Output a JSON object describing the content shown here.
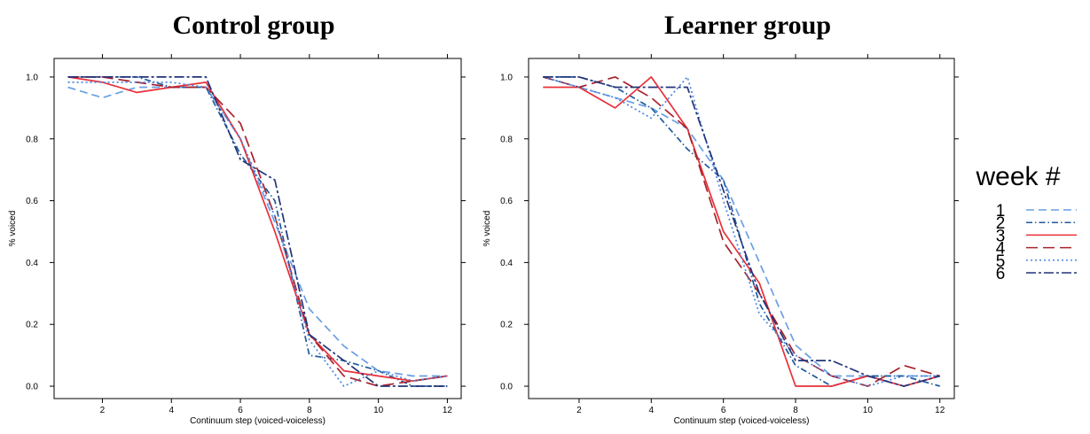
{
  "chart_data": [
    {
      "type": "line",
      "title": "Control group",
      "xlabel": "Continuum step (voiced-voiceless)",
      "ylabel": "% voiced",
      "xlim": [
        0.6,
        12.4
      ],
      "ylim": [
        -0.04,
        1.06
      ],
      "xticks": [
        "2",
        "4",
        "6",
        "8",
        "10",
        "12"
      ],
      "yticks": [
        "0.0",
        "0.2",
        "0.4",
        "0.6",
        "0.8",
        "1.0"
      ],
      "grid": false,
      "x": [
        1,
        2,
        3,
        4,
        5,
        6,
        7,
        8,
        9,
        10,
        11,
        12
      ],
      "series": [
        {
          "name": "1",
          "values": [
            0.967,
            0.933,
            0.967,
            0.967,
            0.967,
            0.8,
            0.53,
            0.25,
            0.13,
            0.05,
            0.033,
            0.033
          ]
        },
        {
          "name": "2",
          "values": [
            1.0,
            1.0,
            1.0,
            0.967,
            0.967,
            0.75,
            0.6,
            0.1,
            0.083,
            0.05,
            0.0,
            0.0
          ]
        },
        {
          "name": "3",
          "values": [
            1.0,
            0.983,
            0.95,
            0.967,
            0.983,
            0.8,
            0.5,
            0.167,
            0.05,
            0.033,
            0.017,
            0.033
          ]
        },
        {
          "name": "4",
          "values": [
            1.0,
            1.0,
            0.983,
            0.967,
            0.967,
            0.85,
            0.55,
            0.167,
            0.033,
            0.0,
            0.017,
            0.033
          ]
        },
        {
          "name": "5",
          "values": [
            0.983,
            0.983,
            0.983,
            0.983,
            0.967,
            0.8,
            0.55,
            0.15,
            0.0,
            0.05,
            0.017,
            0.033
          ]
        },
        {
          "name": "6",
          "values": [
            1.0,
            1.0,
            1.0,
            1.0,
            1.0,
            0.733,
            0.667,
            0.167,
            0.083,
            0.0,
            0.0,
            0.0
          ]
        }
      ]
    },
    {
      "type": "line",
      "title": "Learner group",
      "xlabel": "Continuum step (voiced-voiceless)",
      "ylabel": "% voiced",
      "xlim": [
        0.6,
        12.4
      ],
      "ylim": [
        -0.04,
        1.06
      ],
      "xticks": [
        "2",
        "4",
        "6",
        "8",
        "10",
        "12"
      ],
      "yticks": [
        "0.0",
        "0.2",
        "0.4",
        "0.6",
        "0.8",
        "1.0"
      ],
      "grid": false,
      "x": [
        1,
        2,
        3,
        4,
        5,
        6,
        7,
        8,
        9,
        10,
        11,
        12
      ],
      "series": [
        {
          "name": "1",
          "values": [
            1.0,
            0.967,
            0.933,
            0.9,
            0.833,
            0.667,
            0.4,
            0.133,
            0.033,
            0.033,
            0.033,
            0.033
          ]
        },
        {
          "name": "2",
          "values": [
            1.0,
            1.0,
            0.967,
            0.9,
            0.767,
            0.667,
            0.267,
            0.067,
            0.0,
            0.033,
            0.033,
            0.0
          ]
        },
        {
          "name": "3",
          "values": [
            0.967,
            0.967,
            0.9,
            1.0,
            0.833,
            0.5,
            0.333,
            0.0,
            0.0,
            0.033,
            0.0,
            0.033
          ]
        },
        {
          "name": "4",
          "values": [
            1.0,
            0.967,
            1.0,
            0.933,
            0.833,
            0.467,
            0.3,
            0.1,
            0.033,
            0.0,
            0.067,
            0.033
          ]
        },
        {
          "name": "5",
          "values": [
            1.0,
            0.967,
            0.933,
            0.867,
            1.0,
            0.6,
            0.233,
            0.1,
            0.033,
            0.0,
            0.033,
            0.033
          ]
        },
        {
          "name": "6",
          "values": [
            1.0,
            1.0,
            0.967,
            0.967,
            0.967,
            0.633,
            0.3,
            0.083,
            0.083,
            0.033,
            0.0,
            0.033
          ]
        }
      ]
    }
  ],
  "legend": {
    "title": "week #",
    "placement": "right",
    "entries": [
      {
        "label": "1",
        "color": "#6a9fe3",
        "dash": "dashed"
      },
      {
        "label": "2",
        "color": "#1f5a9c",
        "dash": "dotdash"
      },
      {
        "label": "3",
        "color": "#e8303a",
        "dash": "solid"
      },
      {
        "label": "4",
        "color": "#a8222c",
        "dash": "longdash"
      },
      {
        "label": "5",
        "color": "#4a86e0",
        "dash": "dotted"
      },
      {
        "label": "6",
        "color": "#22347a",
        "dash": "twodash"
      }
    ]
  }
}
